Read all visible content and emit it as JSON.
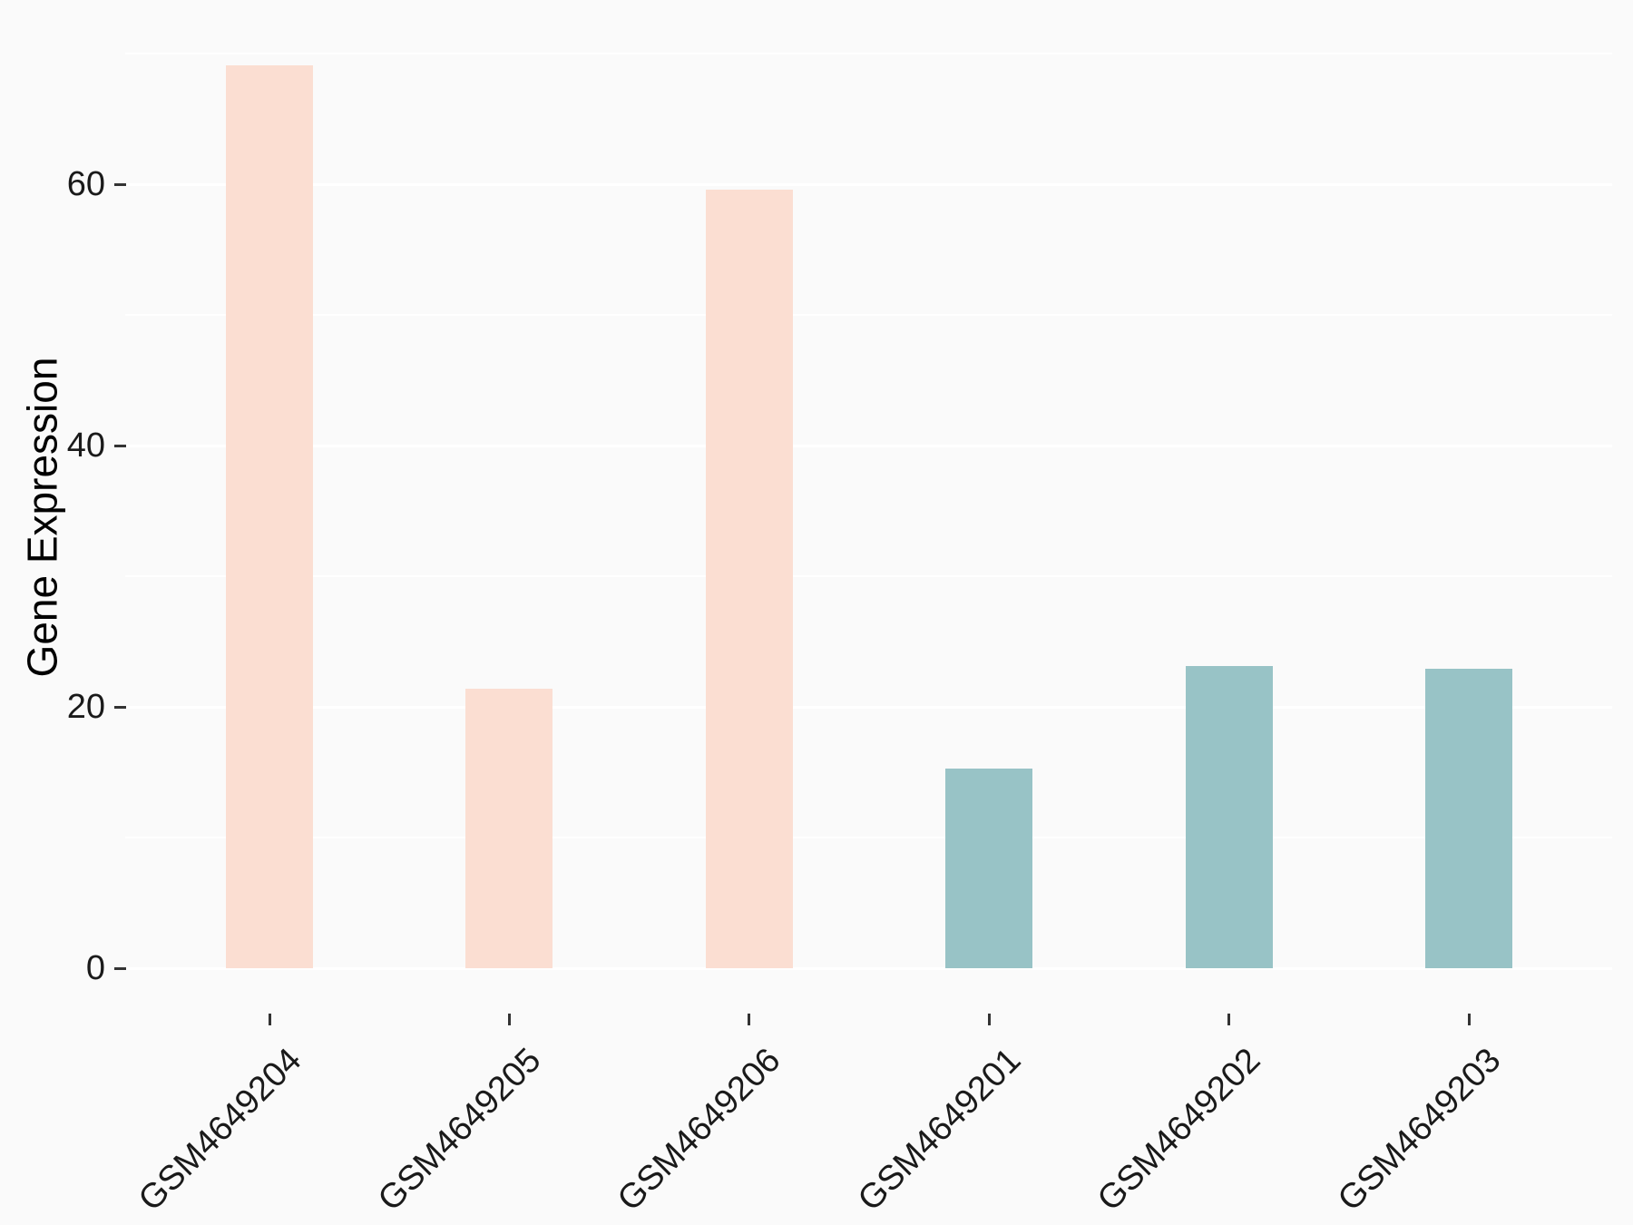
{
  "figure": {
    "background_color": "#fafafa"
  },
  "chart_data": {
    "type": "bar",
    "title": "",
    "ylabel": "Gene Expression",
    "xlabel": "",
    "categories": [
      "GSM4649204",
      "GSM4649205",
      "GSM4649206",
      "GSM4649201",
      "GSM4649202",
      "GSM4649203"
    ],
    "values": [
      69.1,
      21.4,
      59.6,
      15.3,
      23.1,
      22.9
    ],
    "bar_colors": [
      "#fbded2",
      "#fbded2",
      "#fbded2",
      "#98c3c6",
      "#98c3c6",
      "#98c3c6"
    ],
    "group_colors": {
      "pink_group": "#fbded2",
      "teal_group": "#98c3c6"
    },
    "ylim": [
      0,
      72.5
    ],
    "yticks": [
      0,
      20,
      40,
      60
    ],
    "ytick_labels": [
      "0",
      "20",
      "40",
      "60"
    ],
    "minor_gridlines": [
      10,
      30,
      50,
      70
    ],
    "grid": "on",
    "gridline_color": "#ffffff",
    "background_color": "#fafafa",
    "tick_mark_color": "#333333",
    "text_color": "#1a1a1a",
    "x_tick_label_rotation_deg": 45,
    "legend_position": "none"
  }
}
